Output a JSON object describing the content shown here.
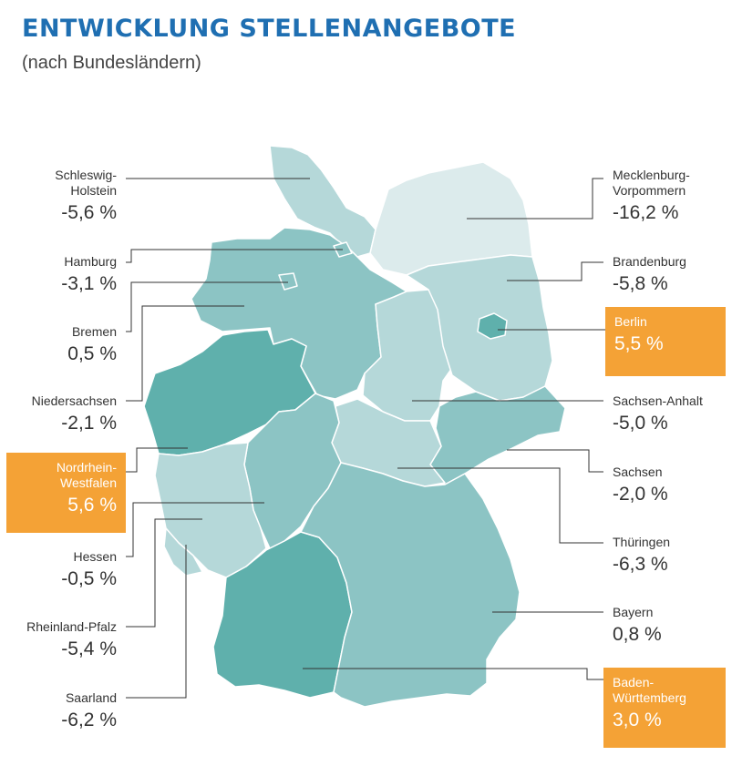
{
  "title": "ENTWICKLUNG STELLENANGEBOTE",
  "subtitle": "(nach Bundesländern)",
  "colors": {
    "highlight": "#f4a236",
    "title": "#1f6fb2",
    "level_light": "#dcebec",
    "level_mid_light": "#b5d8d9",
    "level_mid": "#8cc4c4",
    "level_dark": "#5fb0ac"
  },
  "states": [
    {
      "name": "Schleswig-\nHolstein",
      "value": "-5,6 %",
      "highlight": false
    },
    {
      "name": "Hamburg",
      "value": "-3,1 %",
      "highlight": false
    },
    {
      "name": "Bremen",
      "value": "0,5 %",
      "highlight": false
    },
    {
      "name": "Niedersachsen",
      "value": "-2,1 %",
      "highlight": false
    },
    {
      "name": "Nordrhein-\nWestfalen",
      "value": "5,6 %",
      "highlight": true
    },
    {
      "name": "Hessen",
      "value": "-0,5 %",
      "highlight": false
    },
    {
      "name": "Rheinland-Pfalz",
      "value": "-5,4 %",
      "highlight": false
    },
    {
      "name": "Saarland",
      "value": "-6,2 %",
      "highlight": false
    },
    {
      "name": "Mecklenburg-\nVorpommern",
      "value": "-16,2 %",
      "highlight": false
    },
    {
      "name": "Brandenburg",
      "value": "-5,8 %",
      "highlight": false
    },
    {
      "name": "Berlin",
      "value": "5,5 %",
      "highlight": true
    },
    {
      "name": "Sachsen-Anhalt",
      "value": "-5,0 %",
      "highlight": false
    },
    {
      "name": "Sachsen",
      "value": "-2,0 %",
      "highlight": false
    },
    {
      "name": "Thüringen",
      "value": "-6,3 %",
      "highlight": false
    },
    {
      "name": "Bayern",
      "value": "0,8 %",
      "highlight": false
    },
    {
      "name": "Baden-\nWürttemberg",
      "value": "3,0 %",
      "highlight": true
    }
  ]
}
